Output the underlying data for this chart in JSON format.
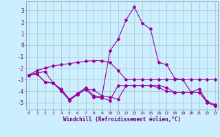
{
  "xlabel": "Windchill (Refroidissement éolien,°C)",
  "background_color": "#cceeff",
  "grid_color": "#aacccc",
  "line_color": "#990099",
  "x_ticks": [
    0,
    1,
    2,
    3,
    4,
    5,
    6,
    7,
    8,
    9,
    10,
    11,
    12,
    13,
    14,
    15,
    16,
    17,
    18,
    19,
    20,
    21,
    22,
    23
  ],
  "y_ticks": [
    -5,
    -4,
    -3,
    -2,
    -1,
    0,
    1,
    2,
    3
  ],
  "xlim": [
    -0.3,
    23.3
  ],
  "ylim": [
    -5.6,
    3.8
  ],
  "lines": [
    {
      "x": [
        0,
        1,
        2,
        3,
        4,
        5,
        6,
        7,
        8,
        9,
        10,
        11,
        12,
        13,
        14,
        15,
        16,
        17,
        18,
        19,
        20,
        21,
        22,
        23
      ],
      "y": [
        -2.6,
        -2.2,
        -2.0,
        -1.8,
        -1.7,
        -1.6,
        -1.5,
        -1.4,
        -1.35,
        -1.35,
        -1.5,
        -2.2,
        -3.0,
        -3.0,
        -3.0,
        -3.0,
        -3.0,
        -3.0,
        -3.0,
        -3.0,
        -3.0,
        -3.0,
        -3.0,
        -3.0
      ]
    },
    {
      "x": [
        0,
        1,
        2,
        3,
        4,
        5,
        6,
        7,
        8,
        9,
        10,
        11,
        12,
        13,
        14,
        15,
        16,
        17,
        18,
        19,
        20,
        21,
        22,
        23
      ],
      "y": [
        -2.6,
        -2.5,
        -3.2,
        -3.3,
        -3.8,
        -4.7,
        -4.3,
        -3.8,
        -3.9,
        -4.4,
        -4.5,
        -4.7,
        -3.5,
        -3.5,
        -3.5,
        -3.5,
        -3.7,
        -4.0,
        -4.1,
        -4.1,
        -4.1,
        -4.1,
        -4.9,
        -5.2
      ]
    },
    {
      "x": [
        0,
        1,
        2,
        3,
        4,
        5,
        6,
        7,
        8,
        9,
        10,
        11,
        12,
        13,
        14,
        15,
        16,
        17,
        18,
        19,
        20,
        21,
        22,
        23
      ],
      "y": [
        -2.6,
        -2.5,
        -3.2,
        -3.3,
        -4.0,
        -4.8,
        -4.3,
        -3.85,
        -4.5,
        -4.6,
        -4.8,
        -3.5,
        -3.5,
        -3.5,
        -3.5,
        -3.5,
        -3.5,
        -3.7,
        -4.1,
        -4.1,
        -4.1,
        -4.1,
        -5.0,
        -5.3
      ]
    },
    {
      "x": [
        0,
        1,
        2,
        3,
        4,
        5,
        6,
        7,
        8,
        9,
        10,
        11,
        12,
        13,
        14,
        15,
        16,
        17,
        18,
        19,
        20,
        21,
        22,
        23
      ],
      "y": [
        -2.6,
        -2.4,
        -2.3,
        -3.3,
        -3.9,
        -4.7,
        -4.2,
        -3.7,
        -4.4,
        -4.5,
        -0.5,
        0.5,
        2.2,
        3.3,
        1.9,
        1.4,
        -1.5,
        -1.7,
        -2.9,
        -3.0,
        -4.1,
        -3.8,
        -4.9,
        -5.2
      ]
    }
  ]
}
